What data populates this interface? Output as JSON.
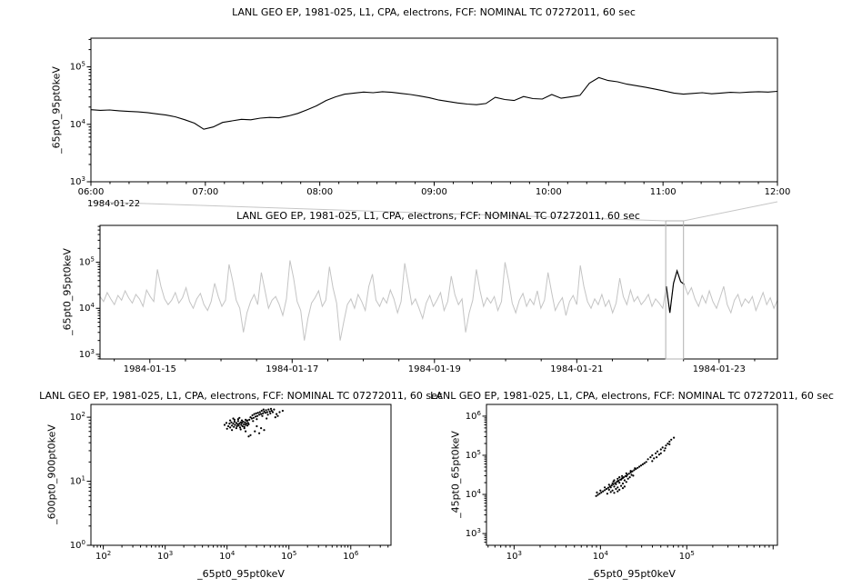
{
  "window": {
    "background": "#ffffff"
  },
  "chart_data": [
    {
      "id": "detail-timeseries",
      "type": "line",
      "title": "LANL GEO EP, 1981-025, L1, CPA, electrons, FCF: NOMINAL TC 07272011, 60 sec",
      "ylabel": "_65pt0_95pt0keV",
      "context_date": "1984-01-22",
      "x_tick_labels": [
        "06:00",
        "07:00",
        "08:00",
        "09:00",
        "10:00",
        "11:00",
        "12:00"
      ],
      "x_tick_hours": [
        6,
        7,
        8,
        9,
        10,
        11,
        12
      ],
      "x_range_hours": [
        6,
        12
      ],
      "y_log_range": [
        3,
        5.5
      ],
      "y_tick_exponents": [
        3,
        4,
        5
      ],
      "line_color": "#000000",
      "values": [
        18000,
        17500,
        17800,
        17200,
        16800,
        16500,
        16000,
        15200,
        14500,
        13500,
        12000,
        10500,
        8200,
        9000,
        10800,
        11500,
        12200,
        12000,
        12800,
        13200,
        13000,
        14000,
        15500,
        18000,
        21000,
        26000,
        30000,
        33500,
        35000,
        36500,
        35500,
        37000,
        36000,
        34500,
        33000,
        31000,
        29000,
        26500,
        25000,
        23500,
        22500,
        22000,
        23000,
        29500,
        27000,
        26000,
        30500,
        28000,
        27500,
        33000,
        28500,
        30000,
        32000,
        52000,
        65000,
        58000,
        55000,
        50000,
        47000,
        44000,
        41000,
        38000,
        35000,
        33500,
        34500,
        35500,
        34000,
        35000,
        36000,
        35500,
        36500,
        37000,
        36500,
        37500
      ]
    },
    {
      "id": "context-timeseries",
      "type": "line",
      "title": "LANL GEO EP, 1981-025, L1, CPA, electrons, FCF: NOMINAL TC 07272011, 60 sec",
      "ylabel": "_65pt0_95pt0keV",
      "x_tick_labels": [
        "1984-01-15",
        "1984-01-17",
        "1984-01-19",
        "1984-01-21",
        "1984-01-23"
      ],
      "x_tick_days": [
        1,
        3,
        5,
        7,
        9
      ],
      "x_range_days": [
        0.3,
        9.82
      ],
      "y_log_range": [
        2.9,
        5.8
      ],
      "y_tick_exponents": [
        3,
        4,
        5
      ],
      "line_color": "#c4c4c4",
      "highlight_color": "#000000",
      "selection_days": [
        8.25,
        8.5
      ],
      "values": [
        18000,
        14000,
        22000,
        16000,
        12000,
        19000,
        15000,
        24000,
        17000,
        13000,
        20000,
        16000,
        11000,
        25000,
        18000,
        14000,
        70000,
        30000,
        16000,
        12000,
        15000,
        22000,
        13000,
        17000,
        28000,
        14000,
        10000,
        16000,
        21000,
        12000,
        9000,
        14000,
        35000,
        18000,
        11000,
        15000,
        90000,
        40000,
        15000,
        10000,
        3000,
        8000,
        14000,
        20000,
        12000,
        60000,
        25000,
        10000,
        15000,
        18000,
        12000,
        7000,
        16000,
        110000,
        45000,
        14000,
        9000,
        2000,
        6000,
        13000,
        17000,
        24000,
        11000,
        15000,
        80000,
        28000,
        13000,
        2000,
        5000,
        12000,
        16000,
        10000,
        20000,
        14000,
        9000,
        30000,
        55000,
        15000,
        11000,
        17000,
        13000,
        25000,
        16000,
        8000,
        14000,
        95000,
        35000,
        12000,
        16000,
        10000,
        6000,
        13000,
        19000,
        11000,
        15000,
        22000,
        9000,
        14000,
        50000,
        20000,
        12000,
        16000,
        3000,
        8000,
        15000,
        70000,
        25000,
        11000,
        17000,
        13000,
        18000,
        9000,
        14000,
        100000,
        40000,
        13000,
        8000,
        15000,
        21000,
        11000,
        16000,
        12000,
        24000,
        10000,
        15000,
        60000,
        22000,
        9000,
        13000,
        17000,
        7000,
        14000,
        19000,
        12000,
        85000,
        30000,
        14000,
        10000,
        16000,
        12000,
        20000,
        11000,
        15000,
        8000,
        13000,
        45000,
        18000,
        12000,
        25000,
        14000,
        18000,
        12000,
        15000,
        20000,
        11000,
        16000,
        13000,
        10000,
        30000,
        8000,
        35000,
        65000,
        38000,
        33000,
        20000,
        28000,
        16000,
        11000,
        19000,
        13000,
        24000,
        14000,
        10000,
        17000,
        30000,
        12000,
        8000,
        15000,
        20000,
        11000,
        16000,
        13000,
        18000,
        9000,
        14000,
        22000,
        12000,
        17000,
        10000,
        15000
      ]
    },
    {
      "id": "scatter-600-900",
      "type": "scatter",
      "title": "LANL GEO EP, 1981-025, L1, CPA, electrons, FCF: NOMINAL TC 07272011, 60 sec",
      "xlabel": "_65pt0_95pt0keV",
      "ylabel": "_600pt0_900pt0keV",
      "x_log_range": [
        1.8,
        6.65
      ],
      "y_log_range": [
        0,
        2.2
      ],
      "x_tick_exponents": [
        2,
        3,
        4,
        5,
        6
      ],
      "y_tick_exponents": [
        0,
        1,
        2
      ],
      "marker_color": "#000000",
      "points_log10": [
        [
          3.96,
          1.88
        ],
        [
          3.99,
          1.91
        ],
        [
          4.02,
          1.86
        ],
        [
          4.04,
          1.9
        ],
        [
          4.05,
          1.84
        ],
        [
          4.07,
          1.92
        ],
        [
          4.08,
          1.87
        ],
        [
          4.1,
          1.9
        ],
        [
          4.11,
          1.85
        ],
        [
          4.12,
          1.93
        ],
        [
          4.13,
          1.88
        ],
        [
          4.15,
          1.91
        ],
        [
          4.16,
          1.86
        ],
        [
          4.17,
          1.89
        ],
        [
          4.18,
          1.94
        ],
        [
          4.19,
          1.87
        ],
        [
          4.2,
          1.9
        ],
        [
          4.21,
          1.84
        ],
        [
          4.22,
          1.92
        ],
        [
          4.23,
          1.88
        ],
        [
          4.24,
          1.91
        ],
        [
          4.25,
          1.86
        ],
        [
          4.26,
          1.93
        ],
        [
          4.27,
          1.89
        ],
        [
          4.28,
          1.85
        ],
        [
          4.29,
          1.92
        ],
        [
          4.3,
          1.88
        ],
        [
          4.31,
          1.9
        ],
        [
          4.32,
          1.94
        ],
        [
          4.33,
          1.87
        ],
        [
          4.34,
          1.91
        ],
        [
          4.35,
          1.89
        ],
        [
          4.05,
          1.95
        ],
        [
          4.12,
          1.96
        ],
        [
          4.18,
          1.97
        ],
        [
          4.24,
          1.95
        ],
        [
          4.3,
          1.96
        ],
        [
          4.0,
          1.82
        ],
        [
          4.08,
          1.8
        ],
        [
          4.15,
          1.83
        ],
        [
          4.22,
          1.81
        ],
        [
          4.28,
          1.83
        ],
        [
          4.33,
          1.95
        ],
        [
          4.1,
          1.98
        ],
        [
          4.2,
          1.99
        ],
        [
          4.36,
          1.96
        ],
        [
          4.38,
          2.0
        ],
        [
          4.4,
          1.98
        ],
        [
          4.41,
          2.03
        ],
        [
          4.43,
          1.99
        ],
        [
          4.44,
          2.05
        ],
        [
          4.46,
          2.01
        ],
        [
          4.47,
          2.06
        ],
        [
          4.49,
          2.02
        ],
        [
          4.5,
          2.07
        ],
        [
          4.52,
          2.04
        ],
        [
          4.53,
          2.08
        ],
        [
          4.55,
          2.05
        ],
        [
          4.56,
          2.1
        ],
        [
          4.58,
          2.06
        ],
        [
          4.6,
          2.09
        ],
        [
          4.62,
          2.07
        ],
        [
          4.63,
          2.11
        ],
        [
          4.65,
          2.08
        ],
        [
          4.67,
          2.12
        ],
        [
          4.69,
          2.09
        ],
        [
          4.7,
          2.06
        ],
        [
          4.72,
          2.1
        ],
        [
          4.74,
          2.08
        ],
        [
          4.57,
          2.02
        ],
        [
          4.48,
          1.97
        ],
        [
          4.42,
          1.94
        ],
        [
          4.66,
          2.04
        ],
        [
          4.59,
          2.12
        ],
        [
          4.71,
          2.13
        ],
        [
          4.45,
          1.78
        ],
        [
          4.52,
          1.75
        ],
        [
          4.6,
          1.8
        ],
        [
          4.38,
          1.72
        ],
        [
          4.55,
          1.83
        ],
        [
          4.8,
          2.05
        ],
        [
          4.85,
          2.08
        ],
        [
          4.9,
          2.1
        ],
        [
          4.78,
          2.0
        ],
        [
          4.35,
          1.7
        ],
        [
          4.48,
          1.86
        ],
        [
          4.64,
          1.98
        ],
        [
          4.76,
          2.12
        ],
        [
          4.82,
          2.02
        ],
        [
          4.3,
          1.78
        ]
      ]
    },
    {
      "id": "scatter-45-65",
      "type": "scatter",
      "title": "LANL GEO EP, 1981-025, L1, CPA, electrons, FCF: NOMINAL TC 07272011, 60 sec",
      "xlabel": "_65pt0_95pt0keV",
      "ylabel": "_45pt0_65pt0keV",
      "x_log_range": [
        2.68,
        6.05
      ],
      "y_log_range": [
        2.7,
        6.3
      ],
      "x_tick_exponents": [
        3,
        4,
        5
      ],
      "y_tick_exponents": [
        3,
        4,
        5,
        6
      ],
      "marker_color": "#000000",
      "points_log10": [
        [
          3.95,
          3.96
        ],
        [
          3.97,
          3.99
        ],
        [
          3.99,
          4.02
        ],
        [
          4.01,
          4.05
        ],
        [
          4.03,
          4.08
        ],
        [
          4.05,
          4.11
        ],
        [
          4.07,
          4.14
        ],
        [
          4.09,
          4.17
        ],
        [
          4.11,
          4.2
        ],
        [
          4.13,
          4.23
        ],
        [
          4.15,
          4.26
        ],
        [
          4.17,
          4.29
        ],
        [
          4.19,
          4.32
        ],
        [
          4.21,
          4.35
        ],
        [
          4.23,
          4.38
        ],
        [
          4.25,
          4.41
        ],
        [
          4.27,
          4.44
        ],
        [
          4.29,
          4.47
        ],
        [
          4.31,
          4.5
        ],
        [
          4.33,
          4.53
        ],
        [
          4.35,
          4.56
        ],
        [
          4.37,
          4.59
        ],
        [
          4.39,
          4.62
        ],
        [
          4.41,
          4.65
        ],
        [
          4.43,
          4.68
        ],
        [
          4.45,
          4.71
        ],
        [
          4.47,
          4.74
        ],
        [
          4.49,
          4.77
        ],
        [
          4.51,
          4.8
        ],
        [
          4.53,
          4.83
        ],
        [
          3.96,
          4.05
        ],
        [
          4.0,
          4.1
        ],
        [
          4.05,
          4.18
        ],
        [
          4.1,
          4.25
        ],
        [
          4.15,
          4.33
        ],
        [
          4.2,
          4.4
        ],
        [
          4.25,
          4.47
        ],
        [
          4.3,
          4.54
        ],
        [
          4.35,
          4.6
        ],
        [
          4.4,
          4.67
        ],
        [
          4.08,
          4.02
        ],
        [
          4.12,
          4.06
        ],
        [
          4.16,
          4.04
        ],
        [
          4.2,
          4.08
        ],
        [
          4.1,
          4.12
        ],
        [
          4.14,
          4.1
        ],
        [
          4.18,
          4.14
        ],
        [
          4.22,
          4.12
        ],
        [
          4.26,
          4.16
        ],
        [
          4.12,
          4.18
        ],
        [
          4.16,
          4.2
        ],
        [
          4.2,
          4.18
        ],
        [
          4.24,
          4.22
        ],
        [
          4.28,
          4.2
        ],
        [
          4.14,
          4.28
        ],
        [
          4.18,
          4.26
        ],
        [
          4.22,
          4.3
        ],
        [
          4.26,
          4.28
        ],
        [
          4.3,
          4.32
        ],
        [
          4.16,
          4.36
        ],
        [
          4.2,
          4.34
        ],
        [
          4.24,
          4.38
        ],
        [
          4.28,
          4.36
        ],
        [
          4.32,
          4.4
        ],
        [
          4.22,
          4.44
        ],
        [
          4.26,
          4.42
        ],
        [
          4.3,
          4.46
        ],
        [
          4.34,
          4.44
        ],
        [
          4.36,
          4.5
        ],
        [
          4.38,
          4.48
        ],
        [
          4.55,
          4.9
        ],
        [
          4.58,
          4.95
        ],
        [
          4.6,
          5.0
        ],
        [
          4.62,
          4.92
        ],
        [
          4.64,
          5.05
        ],
        [
          4.66,
          5.1
        ],
        [
          4.68,
          5.02
        ],
        [
          4.7,
          5.15
        ],
        [
          4.72,
          5.2
        ],
        [
          4.74,
          5.12
        ],
        [
          4.76,
          5.25
        ],
        [
          4.78,
          5.3
        ],
        [
          4.8,
          5.35
        ],
        [
          4.82,
          5.4
        ],
        [
          4.85,
          5.45
        ],
        [
          4.6,
          4.85
        ],
        [
          4.65,
          4.95
        ],
        [
          4.7,
          5.05
        ],
        [
          4.75,
          5.18
        ],
        [
          4.8,
          5.28
        ]
      ]
    }
  ]
}
